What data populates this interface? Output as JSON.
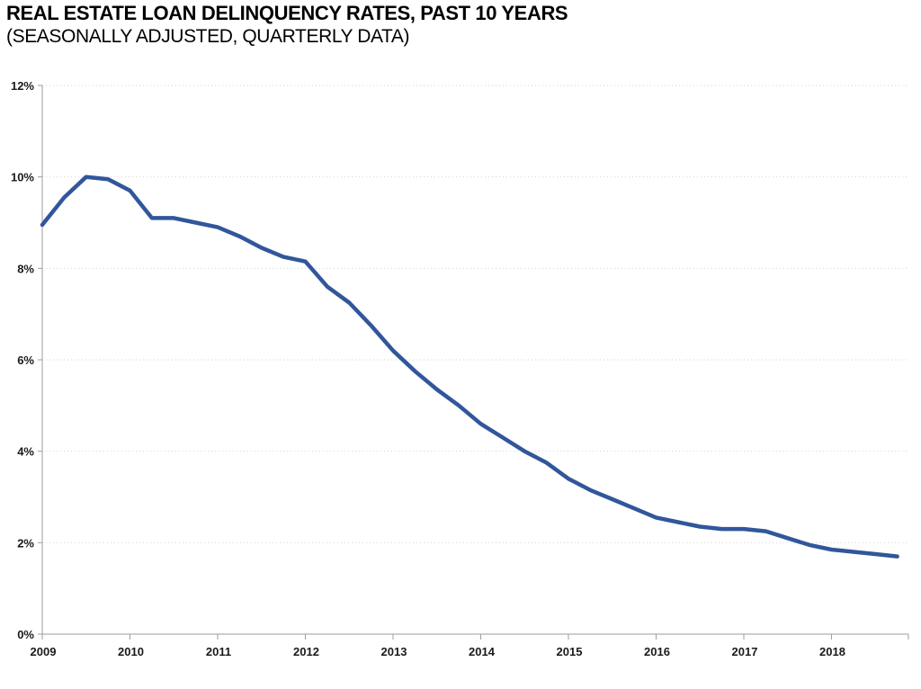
{
  "header": {
    "title": "REAL ESTATE LOAN DELINQUENCY RATES, PAST 10 YEARS",
    "subtitle": "(SEASONALLY ADJUSTED, QUARTERLY DATA)"
  },
  "chart_data": {
    "type": "line",
    "title": "REAL ESTATE LOAN DELINQUENCY RATES, PAST 10 YEARS",
    "subtitle": "(SEASONALLY ADJUSTED, QUARTERLY DATA)",
    "xlabel": "",
    "ylabel": "",
    "ylim": [
      0,
      12
    ],
    "y_tick_step": 2,
    "y_tick_labels": [
      "0%",
      "2%",
      "4%",
      "6%",
      "8%",
      "10%",
      "12%"
    ],
    "x_tick_labels": [
      "2009",
      "2010",
      "2011",
      "2012",
      "2013",
      "2014",
      "2015",
      "2016",
      "2017",
      "2018"
    ],
    "grid": true,
    "legend_position": "none",
    "quarters": [
      "2009 Q1",
      "2009 Q2",
      "2009 Q3",
      "2009 Q4",
      "2010 Q1",
      "2010 Q2",
      "2010 Q3",
      "2010 Q4",
      "2011 Q1",
      "2011 Q2",
      "2011 Q3",
      "2011 Q4",
      "2012 Q1",
      "2012 Q2",
      "2012 Q3",
      "2012 Q4",
      "2013 Q1",
      "2013 Q2",
      "2013 Q3",
      "2013 Q4",
      "2014 Q1",
      "2014 Q2",
      "2014 Q3",
      "2014 Q4",
      "2015 Q1",
      "2015 Q2",
      "2015 Q3",
      "2015 Q4",
      "2016 Q1",
      "2016 Q2",
      "2016 Q3",
      "2016 Q4",
      "2017 Q1",
      "2017 Q2",
      "2017 Q3",
      "2017 Q4",
      "2018 Q1",
      "2018 Q2",
      "2018 Q3",
      "2018 Q4"
    ],
    "series": [
      {
        "name": "Real estate loan delinquency rate (%)",
        "values": [
          8.95,
          9.55,
          10.0,
          9.95,
          9.7,
          9.1,
          9.1,
          9.0,
          8.9,
          8.7,
          8.45,
          8.25,
          8.15,
          7.6,
          7.25,
          6.75,
          6.2,
          5.75,
          5.35,
          5.0,
          4.6,
          4.3,
          4.0,
          3.75,
          3.4,
          3.15,
          2.95,
          2.75,
          2.55,
          2.45,
          2.35,
          2.3,
          2.3,
          2.25,
          2.1,
          1.95,
          1.85,
          1.8,
          1.75,
          1.7
        ]
      }
    ],
    "colors": {
      "line": "#31569B",
      "gridline": "#D2D2D2",
      "axis": "#9E9E9E",
      "tick_label": "#1A1A1A",
      "background": "#FFFFFF"
    }
  }
}
